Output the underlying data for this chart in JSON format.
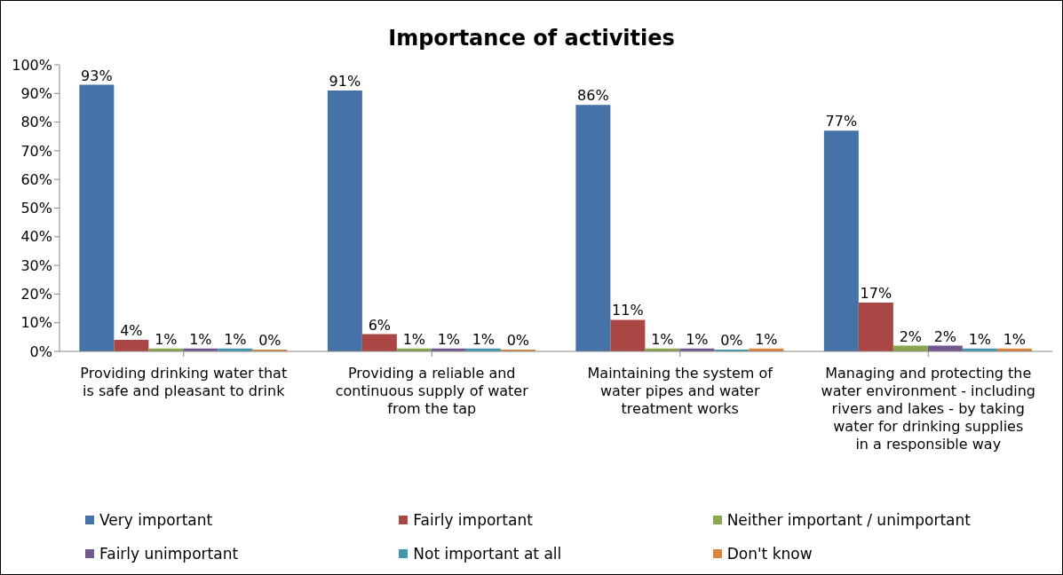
{
  "chart_data": {
    "type": "bar",
    "title": "Importance of activities",
    "categories": [
      "Providing drinking water that is safe and pleasant to drink",
      "Providing a reliable and continuous supply of water from the tap",
      "Maintaining the system of water pipes and water treatment works",
      "Managing and protecting the water environment - including rivers and lakes - by taking water for drinking supplies in a responsible way"
    ],
    "series": [
      {
        "name": "Very important",
        "color": "#4572a7",
        "values": [
          93,
          91,
          86,
          77
        ],
        "value_labels": [
          "93%",
          "91%",
          "86%",
          "77%"
        ]
      },
      {
        "name": "Fairly important",
        "color": "#aa4643",
        "values": [
          4,
          6,
          11,
          17
        ],
        "value_labels": [
          "4%",
          "6%",
          "11%",
          "17%"
        ]
      },
      {
        "name": "Neither important / unimportant",
        "color": "#89a54e",
        "values": [
          1,
          1,
          1,
          2
        ],
        "value_labels": [
          "1%",
          "1%",
          "1%",
          "2%"
        ]
      },
      {
        "name": "Fairly unimportant",
        "color": "#71588f",
        "values": [
          1,
          1,
          1,
          2
        ],
        "value_labels": [
          "1%",
          "1%",
          "1%",
          "2%"
        ]
      },
      {
        "name": "Not important at all",
        "color": "#4198af",
        "values": [
          1,
          1,
          0,
          1
        ],
        "value_labels": [
          "1%",
          "1%",
          "0%",
          "1%"
        ]
      },
      {
        "name": "Don't know",
        "color": "#db843d",
        "values": [
          0,
          0,
          1,
          1
        ],
        "value_labels": [
          "0%",
          "0%",
          "1%",
          "1%"
        ]
      }
    ],
    "ylim": [
      0,
      100
    ],
    "yticks": [
      {
        "value": 0,
        "label": "0%"
      },
      {
        "value": 10,
        "label": "10%"
      },
      {
        "value": 20,
        "label": "20%"
      },
      {
        "value": 30,
        "label": "30%"
      },
      {
        "value": 40,
        "label": "40%"
      },
      {
        "value": 50,
        "label": "50%"
      },
      {
        "value": 60,
        "label": "60%"
      },
      {
        "value": 70,
        "label": "70%"
      },
      {
        "value": 80,
        "label": "80%"
      },
      {
        "value": 90,
        "label": "90%"
      },
      {
        "value": 100,
        "label": "100%"
      }
    ],
    "grid": false,
    "legend": "bottom"
  }
}
